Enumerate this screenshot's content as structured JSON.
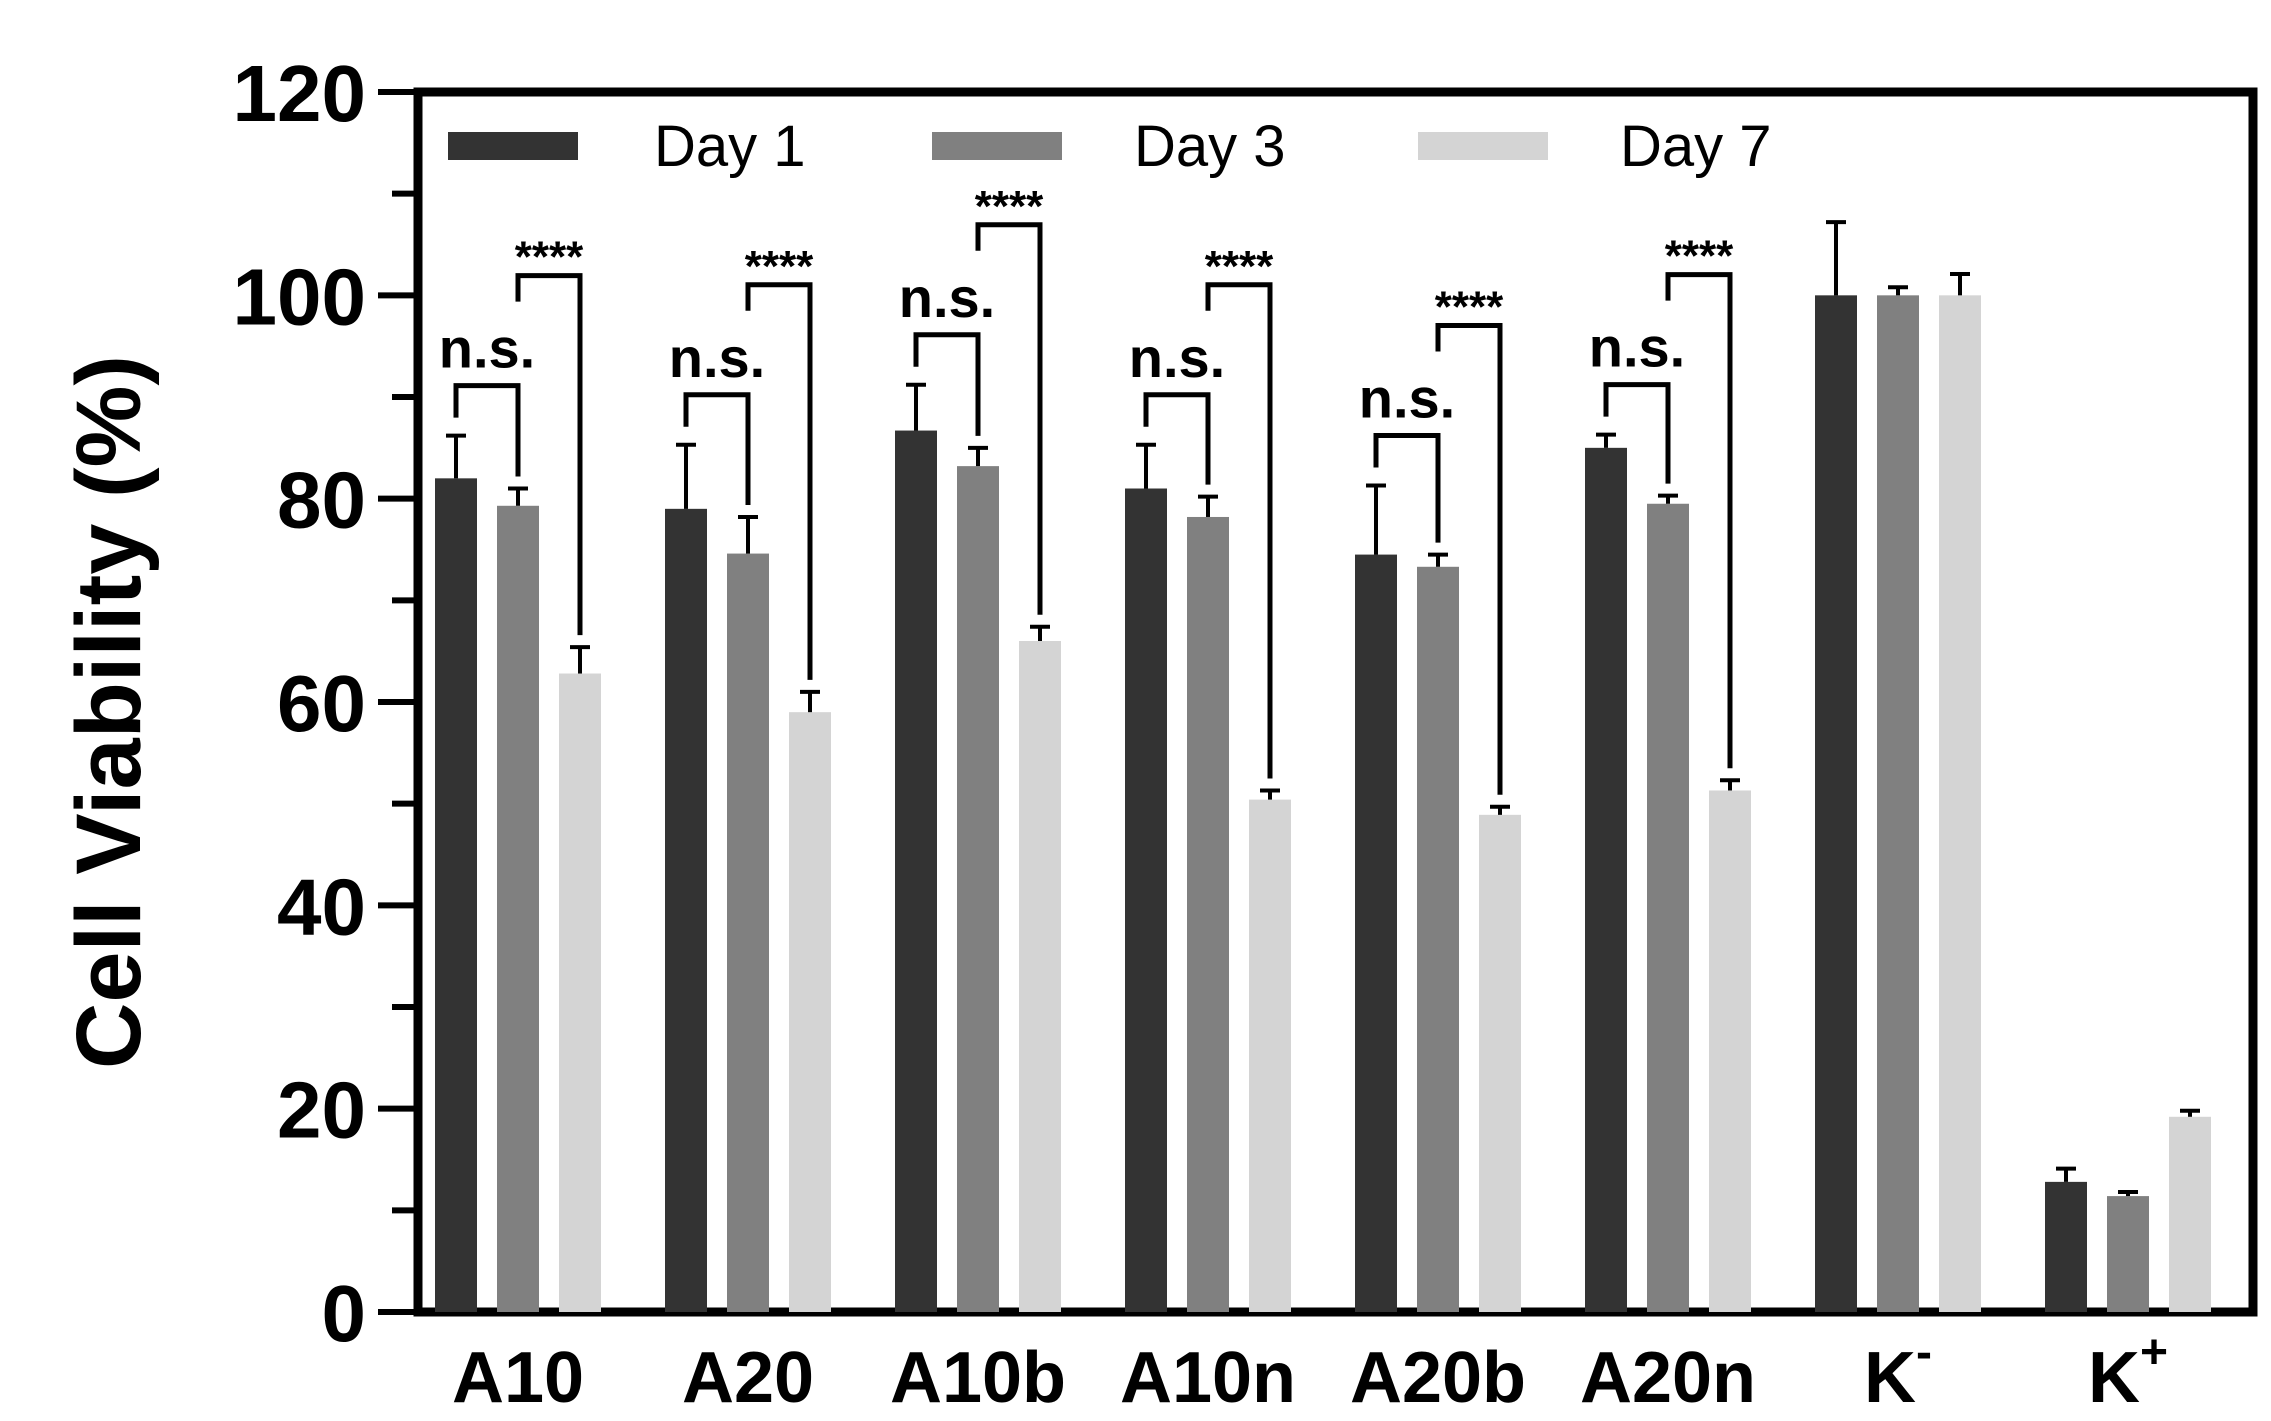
{
  "chart_data": {
    "type": "bar",
    "title": "",
    "xlabel": "",
    "ylabel": "Cell Viability (%)",
    "ylim": [
      0,
      120
    ],
    "yticks": [
      "0",
      "20",
      "40",
      "60",
      "80",
      "100",
      "120"
    ],
    "grid": false,
    "legend_position": "top-left",
    "categories": [
      {
        "base": "A10",
        "sup": ""
      },
      {
        "base": "A20",
        "sup": ""
      },
      {
        "base": "A10b",
        "sup": ""
      },
      {
        "base": "A10n",
        "sup": ""
      },
      {
        "base": "A20b",
        "sup": ""
      },
      {
        "base": "A20n",
        "sup": ""
      },
      {
        "base": "K",
        "sup": "-"
      },
      {
        "base": "K",
        "sup": "+"
      }
    ],
    "series": [
      {
        "name": "Day 1",
        "color": "#333333",
        "values": [
          82,
          79,
          86.7,
          81,
          74.5,
          85,
          100,
          12.8
        ],
        "errors": [
          4.2,
          6.3,
          4.5,
          4.3,
          6.8,
          1.3,
          7.2,
          1.3
        ]
      },
      {
        "name": "Day 3",
        "color": "#808080",
        "values": [
          79.3,
          74.6,
          83.2,
          78.2,
          73.3,
          79.5,
          100,
          11.4
        ],
        "errors": [
          1.7,
          3.6,
          1.8,
          2,
          1.2,
          0.8,
          0.8,
          0.4
        ]
      },
      {
        "name": "Day 7",
        "color": "#d4d4d4",
        "values": [
          62.8,
          59,
          66,
          50.4,
          48.9,
          51.3,
          100,
          19.2
        ],
        "errors": [
          2.6,
          2,
          1.4,
          0.9,
          0.8,
          1,
          2.1,
          0.6
        ]
      }
    ],
    "significance": [
      {
        "category": 0,
        "ns": "n.s.",
        "stars": "****"
      },
      {
        "category": 1,
        "ns": "n.s.",
        "stars": "****"
      },
      {
        "category": 2,
        "ns": "n.s.",
        "stars": "****"
      },
      {
        "category": 3,
        "ns": "n.s.",
        "stars": "****"
      },
      {
        "category": 4,
        "ns": "n.s.",
        "stars": "****"
      },
      {
        "category": 5,
        "ns": "n.s.",
        "stars": "****"
      }
    ]
  }
}
